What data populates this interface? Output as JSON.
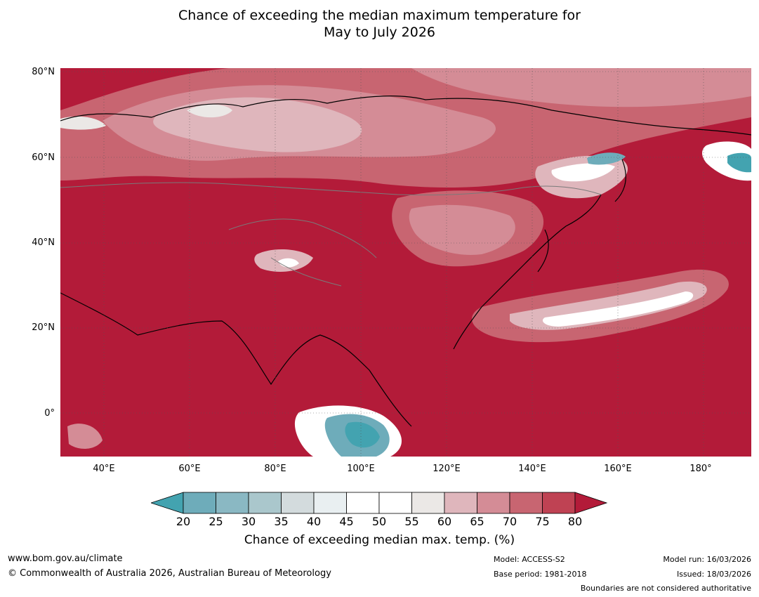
{
  "title": {
    "line1": "Chance of exceeding the median maximum temperature for",
    "line2": "May to July 2026"
  },
  "map": {
    "region": "Asia",
    "base_color": "#b31b39",
    "lat_labels": [
      "80°N",
      "60°N",
      "40°N",
      "20°N",
      "0°"
    ],
    "lon_labels": [
      "40°E",
      "60°E",
      "80°E",
      "100°E",
      "120°E",
      "140°E",
      "160°E",
      "180°"
    ]
  },
  "colorbar": {
    "ticks": [
      "20",
      "25",
      "30",
      "35",
      "40",
      "45",
      "50",
      "55",
      "60",
      "65",
      "70",
      "75",
      "80"
    ],
    "colors": [
      "#43a3b0",
      "#6eacba",
      "#8ab8c3",
      "#aac7cc",
      "#d3dbdd",
      "#e9eff1",
      "#ffffff",
      "#ffffff",
      "#ebe8e6",
      "#dfb6bc",
      "#d48c96",
      "#c86571",
      "#bf4253",
      "#b31b39"
    ],
    "label": "Chance of exceeding median max. temp. (%)"
  },
  "footer": {
    "url": "www.bom.gov.au/climate",
    "copyright": "© Commonwealth of Australia 2026, Australian Bureau of Meteorology",
    "model": "Model: ACCESS-S2",
    "base_period": "Base period: 1981-2018",
    "model_run": "Model run: 16/03/2026",
    "issued": "Issued: 18/03/2026",
    "disclaimer": "Boundaries are not considered authoritative"
  }
}
